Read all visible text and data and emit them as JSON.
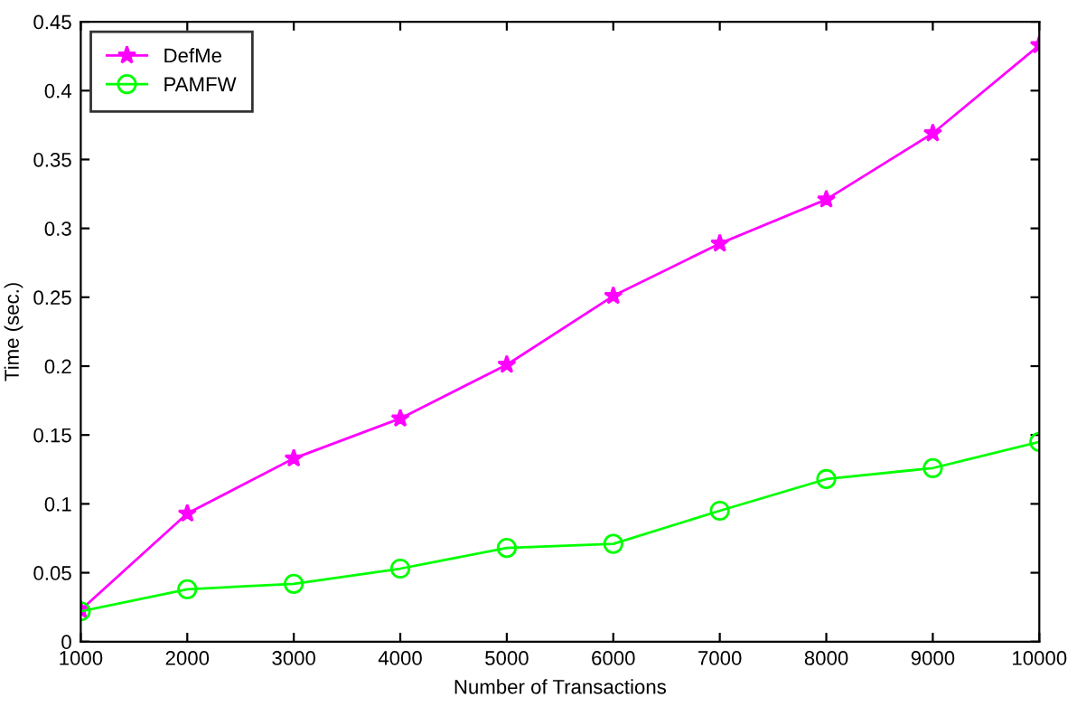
{
  "chart_data": {
    "type": "line",
    "xlabel": "Number of Transactions",
    "ylabel": "Time (sec.)",
    "x": [
      1000,
      2000,
      3000,
      4000,
      5000,
      6000,
      7000,
      8000,
      9000,
      10000
    ],
    "series": [
      {
        "name": "DefMe",
        "color": "#ff00ff",
        "marker": "star",
        "values": [
          0.023,
          0.093,
          0.133,
          0.162,
          0.201,
          0.251,
          0.289,
          0.321,
          0.369,
          0.433
        ]
      },
      {
        "name": "PAMFW",
        "color": "#00ff00",
        "marker": "circle",
        "values": [
          0.022,
          0.038,
          0.042,
          0.053,
          0.068,
          0.071,
          0.095,
          0.118,
          0.126,
          0.145
        ]
      }
    ],
    "xlim": [
      1000,
      10000
    ],
    "xticks": [
      1000,
      2000,
      3000,
      4000,
      5000,
      6000,
      7000,
      8000,
      9000,
      10000
    ],
    "ylim": [
      0,
      0.45
    ],
    "yticks": [
      0,
      0.05,
      0.1,
      0.15,
      0.2,
      0.25,
      0.3,
      0.35,
      0.4,
      0.45
    ],
    "legend": "top left",
    "grid": false,
    "line_style": "solid"
  }
}
